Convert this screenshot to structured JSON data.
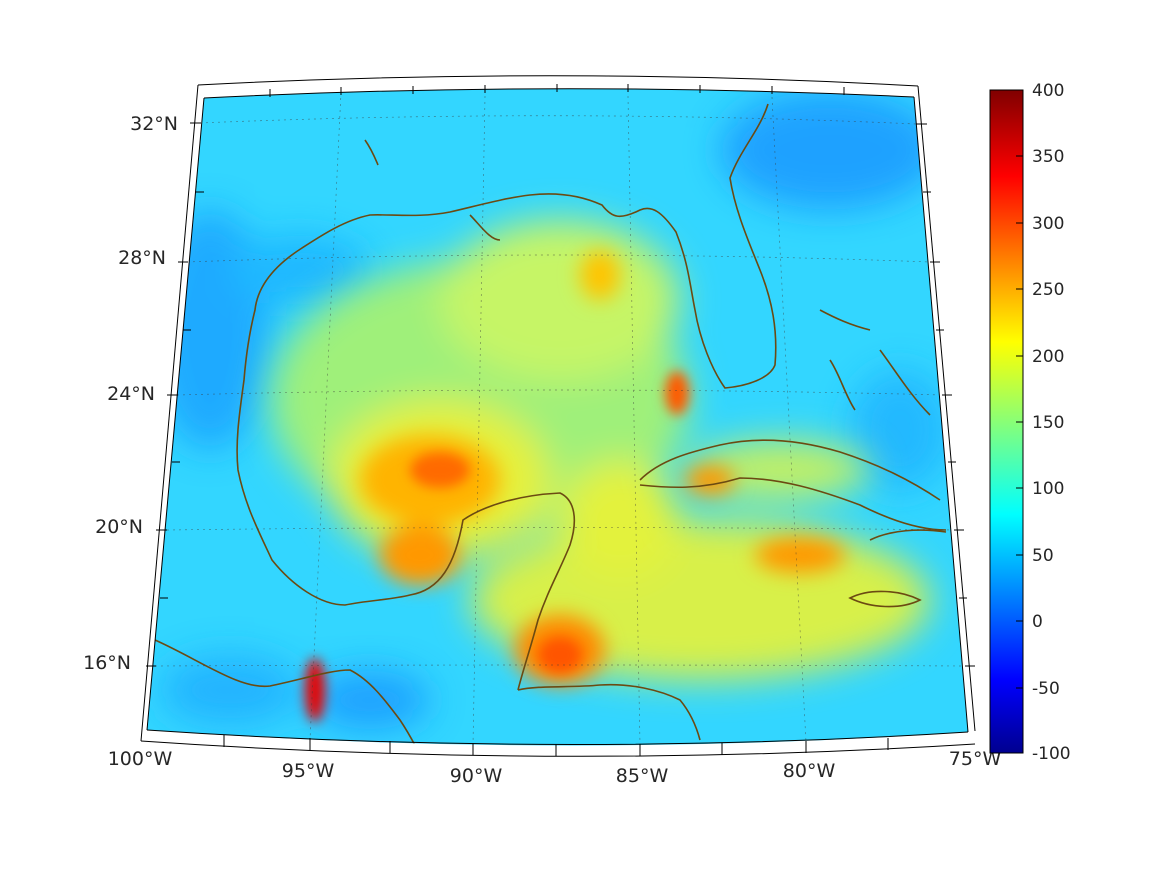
{
  "map": {
    "latitude_labels": [
      "32°N",
      "28°N",
      "24°N",
      "20°N",
      "16°N"
    ],
    "longitude_labels": [
      "100°W",
      "95°W",
      "90°W",
      "85°W",
      "80°W",
      "75°W"
    ]
  },
  "colorbar": {
    "ticks": [
      "400",
      "350",
      "300",
      "250",
      "200",
      "150",
      "100",
      "50",
      "0",
      "-50",
      "-100"
    ],
    "range": [
      -100,
      400
    ],
    "colormap": "jet"
  },
  "colors": {
    "land_outline": "#6b4a12",
    "graticule": "#3a3a3a",
    "background_field": "#33d6ff"
  }
}
